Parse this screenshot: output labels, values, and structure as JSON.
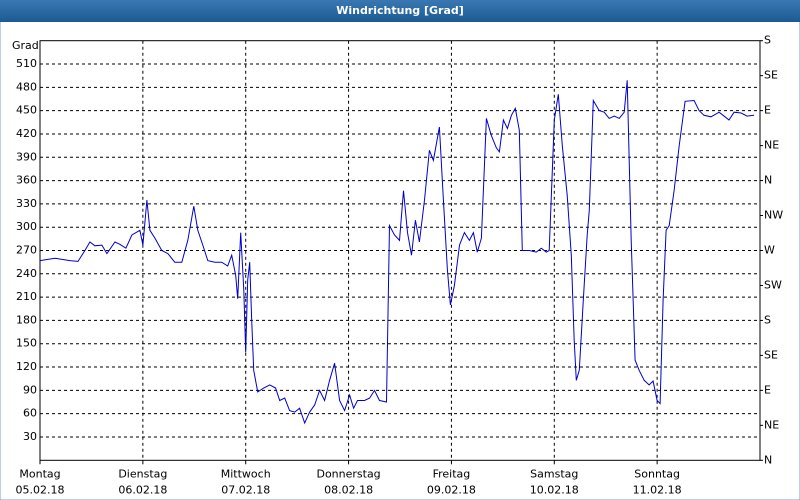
{
  "chart_data": {
    "type": "line",
    "title": "Windrichtung [Grad]",
    "y_label": "Grad",
    "xlim": [
      0,
      7
    ],
    "xticks": [
      {
        "value": 0,
        "label": "Montag",
        "date": "05.02.18"
      },
      {
        "value": 1,
        "label": "Dienstag",
        "date": "06.02.18"
      },
      {
        "value": 2,
        "label": "Mittwoch",
        "date": "07.02.18"
      },
      {
        "value": 3,
        "label": "Donnerstag",
        "date": "08.02.18"
      },
      {
        "value": 4,
        "label": "Freitag",
        "date": "09.02.18"
      },
      {
        "value": 5,
        "label": "Samstag",
        "date": "10.02.18"
      },
      {
        "value": 6,
        "label": "Sonntag",
        "date": "11.02.18"
      }
    ],
    "xgrid": [
      1,
      2,
      3,
      4,
      5,
      6
    ],
    "ylim": [
      0,
      540
    ],
    "yticks": [
      30,
      60,
      90,
      120,
      150,
      180,
      210,
      240,
      270,
      300,
      330,
      360,
      390,
      420,
      450,
      480,
      510
    ],
    "y2lim": [
      0,
      540
    ],
    "y2ticks": [
      {
        "value": 540,
        "label": "S"
      },
      {
        "value": 495,
        "label": "SE"
      },
      {
        "value": 450,
        "label": "E"
      },
      {
        "value": 405,
        "label": "NE"
      },
      {
        "value": 360,
        "label": "N"
      },
      {
        "value": 315,
        "label": "NW"
      },
      {
        "value": 270,
        "label": "W"
      },
      {
        "value": 225,
        "label": "SW"
      },
      {
        "value": 180,
        "label": "S"
      },
      {
        "value": 135,
        "label": "SE"
      },
      {
        "value": 90,
        "label": "E"
      },
      {
        "value": 45,
        "label": "NE"
      },
      {
        "value": 0,
        "label": "N"
      }
    ],
    "grid": true,
    "series": [
      {
        "color": "#0000cc",
        "x": [
          0,
          0.146,
          0.291,
          0.369,
          0.437,
          0.485,
          0.534,
          0.602,
          0.65,
          0.728,
          0.777,
          0.835,
          0.893,
          0.971,
          1.0,
          1.039,
          1.068,
          1.117,
          1.184,
          1.243,
          1.311,
          1.379,
          1.437,
          1.495,
          1.534,
          1.583,
          1.631,
          1.699,
          1.767,
          1.825,
          1.864,
          1.903,
          1.922,
          1.951,
          1.981,
          2.0,
          2.019,
          2.039,
          2.058,
          2.078,
          2.117,
          2.175,
          2.233,
          2.291,
          2.33,
          2.379,
          2.427,
          2.476,
          2.524,
          2.573,
          2.621,
          2.67,
          2.718,
          2.767,
          2.816,
          2.864,
          2.913,
          2.961,
          3.01,
          3.049,
          3.087,
          3.155,
          3.204,
          3.252,
          3.301,
          3.369,
          3.398,
          3.447,
          3.495,
          3.534,
          3.573,
          3.612,
          3.65,
          3.689,
          3.738,
          3.786,
          3.825,
          3.883,
          3.922,
          3.961,
          3.99,
          4.029,
          4.078,
          4.126,
          4.175,
          4.214,
          4.252,
          4.291,
          4.34,
          4.388,
          4.437,
          4.466,
          4.505,
          4.544,
          4.583,
          4.621,
          4.66,
          4.689,
          4.757,
          4.825,
          4.874,
          4.922,
          4.951,
          5.0,
          5.039,
          5.078,
          5.126,
          5.165,
          5.194,
          5.214,
          5.243,
          5.282,
          5.32,
          5.34,
          5.379,
          5.437,
          5.485,
          5.534,
          5.583,
          5.631,
          5.68,
          5.709,
          5.748,
          5.786,
          5.825,
          5.874,
          5.922,
          5.961,
          6.0,
          6.029,
          6.058,
          6.087,
          6.117,
          6.165,
          6.214,
          6.272,
          6.359,
          6.408,
          6.456,
          6.524,
          6.602,
          6.66,
          6.699,
          6.748,
          6.816,
          6.874,
          6.942
        ],
        "values": [
          257,
          260,
          257,
          256,
          270,
          281,
          276,
          277,
          266,
          281,
          278,
          273,
          290,
          296,
          277,
          335,
          296,
          286,
          270,
          266,
          255,
          255,
          283,
          327,
          296,
          277,
          257,
          255,
          255,
          250,
          264,
          238,
          208,
          293,
          219,
          139,
          232,
          255,
          180,
          116,
          88,
          93,
          97,
          93,
          77,
          80,
          64,
          62,
          67,
          48,
          62,
          71,
          90,
          77,
          103,
          125,
          77,
          64,
          84,
          67,
          77,
          77,
          80,
          90,
          77,
          75,
          302,
          290,
          283,
          347,
          293,
          264,
          309,
          281,
          335,
          399,
          386,
          429,
          335,
          245,
          200,
          225,
          277,
          293,
          283,
          293,
          268,
          286,
          440,
          418,
          402,
          397,
          438,
          427,
          444,
          453,
          425,
          270,
          270,
          268,
          273,
          268,
          270,
          438,
          471,
          405,
          341,
          264,
          154,
          103,
          116,
          206,
          290,
          322,
          463,
          450,
          448,
          440,
          443,
          440,
          448,
          489,
          283,
          129,
          116,
          103,
          97,
          102,
          77,
          73,
          206,
          296,
          302,
          347,
          405,
          462,
          463,
          450,
          444,
          442,
          448,
          442,
          438,
          448,
          447,
          443,
          444
        ]
      }
    ]
  }
}
